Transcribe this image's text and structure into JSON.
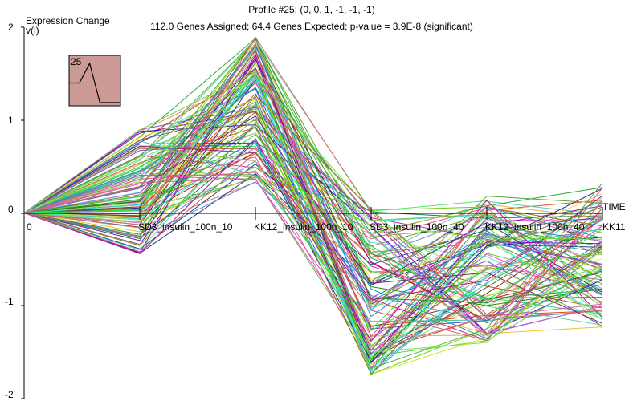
{
  "chart_data": {
    "type": "line",
    "title": "Profile #25: (0, 0, 1, -1, -1, -1)",
    "subtitle": "112.0 Genes Assigned; 64.4 Genes Expected; p-value = 3.9E-8 (significant)",
    "ylabel_line1": "Expression Change",
    "ylabel_line2": "v(i)",
    "xlabel": "TIME",
    "ylim": [
      -2,
      2
    ],
    "y_ticks": [
      "2",
      "1",
      "0",
      "-1",
      "-2"
    ],
    "x_tick_labels": [
      "0",
      "SD3_insulin_100n_10",
      "KK12_insulin_100n_10",
      "SD3_insulin_100n_40",
      "KK12_insulin_100n_40",
      "KK11"
    ],
    "profile": {
      "id": "25",
      "pattern": [
        0,
        0,
        1,
        -1,
        -1,
        -1
      ],
      "box_color": "#cc9a94"
    },
    "grid": false,
    "legend": "none",
    "series_count": 112,
    "series_value_ranges": [
      [
        0,
        0
      ],
      [
        -0.45,
        0.9
      ],
      [
        0.3,
        1.9
      ],
      [
        -1.75,
        0.05
      ],
      [
        -1.4,
        0.2
      ],
      [
        -1.25,
        0.35
      ]
    ]
  }
}
